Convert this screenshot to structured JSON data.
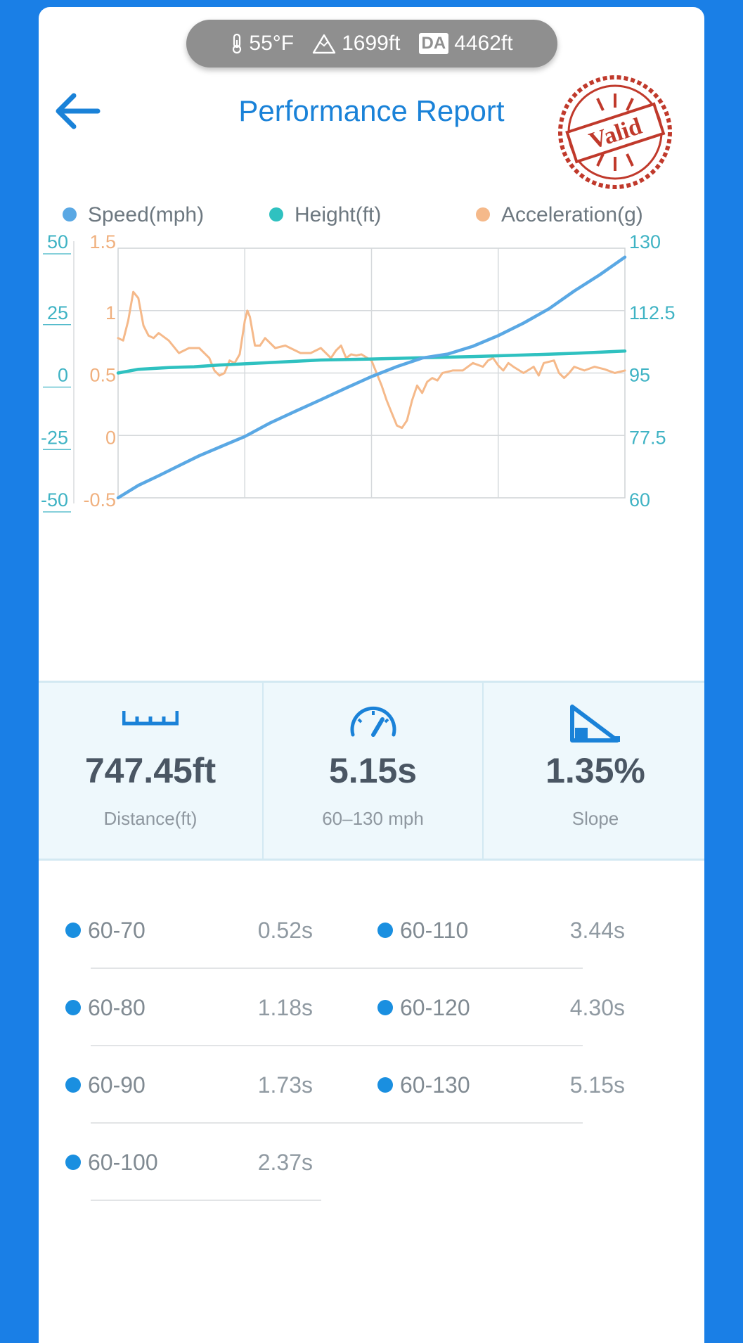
{
  "status_bar": {
    "temperature": "55°F",
    "elevation": "1699ft",
    "da_label": "DA",
    "density_altitude": "4462ft"
  },
  "header": {
    "title": "Performance Report",
    "stamp_text": "Valid",
    "back_icon": "arrow-left-icon"
  },
  "colors": {
    "speed": "#5aa8e4",
    "height": "#2fc1c0",
    "acceleration": "#f5b98a",
    "accent": "#1a82d8",
    "stamp": "#c0392b"
  },
  "chart_data": {
    "type": "line",
    "legend": [
      "Speed(mph)",
      "Height(ft)",
      "Acceleration(g)"
    ],
    "legend_position": "top",
    "grid": true,
    "x_divisions": 4,
    "y_axes": {
      "height": {
        "ticks": [
          "50",
          "25",
          "0",
          "-25",
          "-50"
        ],
        "range": [
          -50,
          50
        ]
      },
      "acceleration": {
        "ticks": [
          "1.5",
          "1",
          "0.5",
          "0",
          "-0.5"
        ],
        "range": [
          -0.5,
          1.5
        ]
      },
      "speed": {
        "ticks": [
          "130",
          "112.5",
          "95",
          "77.5",
          "60"
        ],
        "range": [
          60,
          130
        ]
      }
    },
    "series": [
      {
        "name": "Speed(mph)",
        "axis": "speed",
        "x": [
          0,
          0.04,
          0.08,
          0.12,
          0.16,
          0.2,
          0.25,
          0.3,
          0.35,
          0.4,
          0.45,
          0.5,
          0.55,
          0.6,
          0.65,
          0.7,
          0.75,
          0.8,
          0.85,
          0.9,
          0.95,
          1.0
        ],
        "values": [
          60,
          63.5,
          66.2,
          69,
          71.8,
          74.2,
          77.2,
          81,
          84.3,
          87.5,
          90.8,
          94,
          96.8,
          99.2,
          100.3,
          102.5,
          105.5,
          109,
          113,
          118,
          122.5,
          127.5
        ]
      },
      {
        "name": "Height(ft)",
        "axis": "height",
        "x": [
          0,
          0.04,
          0.1,
          0.15,
          0.2,
          0.3,
          0.4,
          0.5,
          0.6,
          0.7,
          0.8,
          0.9,
          1.0
        ],
        "values": [
          0,
          1.5,
          2.2,
          2.5,
          3.2,
          4.2,
          5.2,
          5.6,
          6.1,
          6.6,
          7.2,
          7.9,
          8.8
        ]
      },
      {
        "name": "Acceleration(g)",
        "axis": "acceleration",
        "x": [
          0,
          0.01,
          0.02,
          0.03,
          0.04,
          0.05,
          0.06,
          0.07,
          0.08,
          0.1,
          0.12,
          0.14,
          0.16,
          0.18,
          0.19,
          0.2,
          0.21,
          0.22,
          0.23,
          0.24,
          0.25,
          0.255,
          0.26,
          0.27,
          0.28,
          0.29,
          0.31,
          0.33,
          0.36,
          0.38,
          0.4,
          0.42,
          0.43,
          0.44,
          0.45,
          0.46,
          0.47,
          0.48,
          0.5,
          0.52,
          0.53,
          0.54,
          0.55,
          0.56,
          0.57,
          0.58,
          0.59,
          0.6,
          0.61,
          0.62,
          0.63,
          0.64,
          0.66,
          0.68,
          0.7,
          0.72,
          0.73,
          0.74,
          0.75,
          0.76,
          0.77,
          0.78,
          0.8,
          0.82,
          0.83,
          0.84,
          0.86,
          0.87,
          0.88,
          0.89,
          0.9,
          0.92,
          0.94,
          0.96,
          0.98,
          1.0
        ],
        "values": [
          0.78,
          0.76,
          0.92,
          1.15,
          1.1,
          0.88,
          0.8,
          0.78,
          0.82,
          0.76,
          0.66,
          0.7,
          0.7,
          0.62,
          0.52,
          0.48,
          0.5,
          0.6,
          0.58,
          0.65,
          0.92,
          1.0,
          0.95,
          0.72,
          0.72,
          0.78,
          0.7,
          0.72,
          0.66,
          0.66,
          0.7,
          0.62,
          0.68,
          0.72,
          0.62,
          0.65,
          0.64,
          0.65,
          0.6,
          0.4,
          0.28,
          0.18,
          0.08,
          0.06,
          0.12,
          0.28,
          0.4,
          0.34,
          0.43,
          0.46,
          0.44,
          0.5,
          0.52,
          0.52,
          0.58,
          0.55,
          0.6,
          0.62,
          0.56,
          0.52,
          0.58,
          0.55,
          0.5,
          0.55,
          0.48,
          0.58,
          0.6,
          0.5,
          0.46,
          0.5,
          0.55,
          0.52,
          0.55,
          0.53,
          0.5,
          0.52
        ]
      }
    ]
  },
  "stats": [
    {
      "value": "747.45ft",
      "label": "Distance(ft)",
      "icon": "ruler-icon"
    },
    {
      "value": "5.15s",
      "label": "60–130 mph",
      "icon": "speedometer-icon"
    },
    {
      "value": "1.35%",
      "label": "Slope",
      "icon": "slope-icon"
    }
  ],
  "splits": [
    {
      "range": "60-70",
      "time": "0.52s"
    },
    {
      "range": "60-80",
      "time": "1.18s"
    },
    {
      "range": "60-90",
      "time": "1.73s"
    },
    {
      "range": "60-100",
      "time": "2.37s"
    },
    {
      "range": "60-110",
      "time": "3.44s"
    },
    {
      "range": "60-120",
      "time": "4.30s"
    },
    {
      "range": "60-130",
      "time": "5.15s"
    }
  ]
}
